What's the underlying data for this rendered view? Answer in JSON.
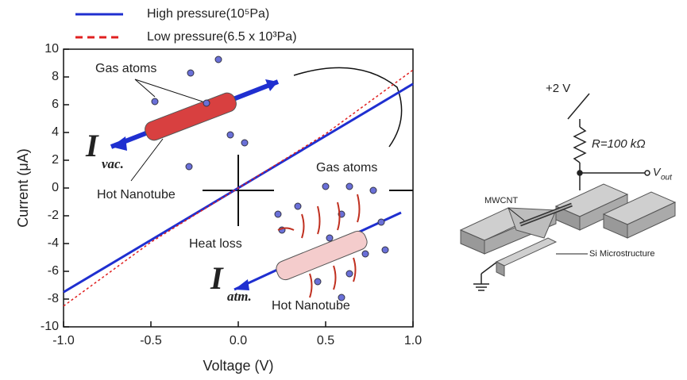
{
  "chart_data": {
    "type": "line",
    "x": [
      -1.0,
      -0.5,
      0.0,
      0.5,
      1.0
    ],
    "series": [
      {
        "name": "High pressure(10⁵Pa)",
        "color": "#1f2fd0",
        "style": "solid",
        "values": [
          -7.5,
          -3.75,
          0,
          3.75,
          7.5
        ]
      },
      {
        "name": "Low pressure(6.5 x 10³Pa)",
        "color": "#e02020",
        "style": "dashed",
        "values": [
          -8.5,
          -3.9,
          0,
          3.9,
          8.5
        ]
      }
    ],
    "xlabel": "Voltage (V)",
    "ylabel": "Current (μA)",
    "xlim": [
      -1.0,
      1.0
    ],
    "ylim": [
      -10,
      10
    ],
    "xticks": [
      {
        "value": -1.0,
        "label": "-1.0"
      },
      {
        "value": -0.5,
        "label": "-0.5"
      },
      {
        "value": 0,
        "label": "0.0"
      },
      {
        "value": 0.5,
        "label": "0.5"
      },
      {
        "value": 1.0,
        "label": "1.0"
      }
    ],
    "yticks": [
      -10,
      -8,
      -6,
      -4,
      -2,
      0,
      2,
      4,
      6,
      8,
      10
    ],
    "annotations": [
      "Gas atoms",
      "I",
      "vac.",
      "Hot  Nanotube",
      "Gas atoms",
      "Heat loss",
      "I",
      "atm.",
      "Hot  Nanotube"
    ]
  },
  "diagram": {
    "supply": "+2 V",
    "resistor": "R=100 kΩ",
    "output": "V",
    "output_sub": "out",
    "device": "MWCNT",
    "structure": "Si Microstructure"
  }
}
